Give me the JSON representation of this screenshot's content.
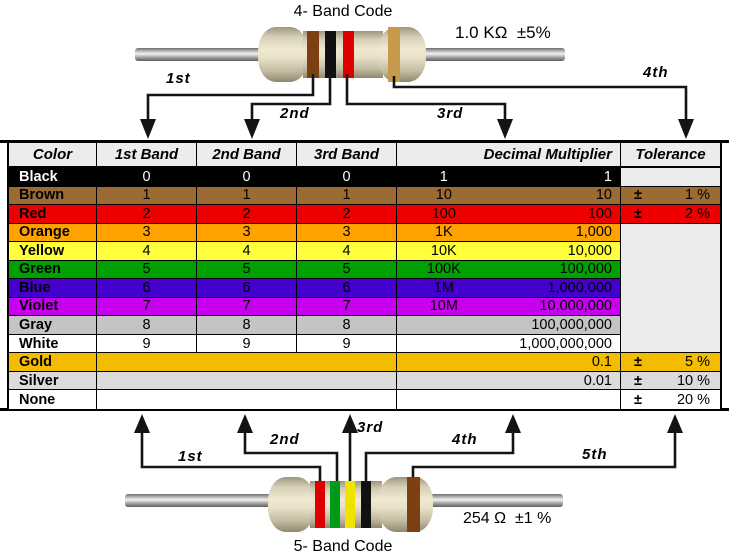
{
  "top_resistor": {
    "title": "4- Band Code",
    "value_label": "1.0 KΩ  ±5%",
    "band_names": [
      "brown-band",
      "black-band",
      "red-band",
      "gold-band"
    ],
    "band_colors": [
      "#7C4012",
      "#111111",
      "#DD0000",
      "#C79A4B"
    ],
    "arrow_labels": [
      "1st",
      "2nd",
      "3rd",
      "4th"
    ]
  },
  "bottom_resistor": {
    "title": "5- Band Code",
    "value_label": "254 Ω  ±1 %",
    "band_names": [
      "red-band",
      "green-band",
      "yellow-band",
      "black-band",
      "brown-band"
    ],
    "band_colors": [
      "#DD0000",
      "#009918",
      "#EFE400",
      "#111111",
      "#7C4012"
    ],
    "arrow_labels": [
      "1st",
      "2nd",
      "3rd",
      "4th",
      "5th"
    ]
  },
  "table": {
    "headers": [
      "Color",
      "1st Band",
      "2nd Band",
      "3rd Band",
      "Decimal Multiplier",
      "Tolerance"
    ],
    "tolerance_sign": "±",
    "header_bg": "#ECECEC",
    "empty_tolerance_bg": "#ECECEC",
    "rows": [
      {
        "name": "Black",
        "bg": "#000000",
        "fg": "#FFFFFF",
        "bands": [
          "0",
          "0",
          "0"
        ],
        "mult_short": "1",
        "mult_long": "1",
        "tol": "",
        "tol_bg": "#ECECEC",
        "tol_open": false
      },
      {
        "name": "Brown",
        "bg": "#9C6B33",
        "fg": "#000000",
        "bands": [
          "1",
          "1",
          "1"
        ],
        "mult_short": "10",
        "mult_long": "10",
        "tol": "1 %",
        "tol_bg": "#9C6B33",
        "tol_open": false
      },
      {
        "name": "Red",
        "bg": "#EE0000",
        "fg": "#000000",
        "bands": [
          "2",
          "2",
          "2"
        ],
        "mult_short": "100",
        "mult_long": "100",
        "tol": "2 %",
        "tol_bg": "#EE0000",
        "tol_open": false
      },
      {
        "name": "Orange",
        "bg": "#FFA200",
        "fg": "#000000",
        "bands": [
          "3",
          "3",
          "3"
        ],
        "mult_short": "1K",
        "mult_long": "1,000",
        "tol": "",
        "tol_bg": "#ECECEC",
        "tol_open": true
      },
      {
        "name": "Yellow",
        "bg": "#FFFF3B",
        "fg": "#000000",
        "bands": [
          "4",
          "4",
          "4"
        ],
        "mult_short": "10K",
        "mult_long": "10,000",
        "tol": "",
        "tol_bg": "#ECECEC",
        "tol_open": true
      },
      {
        "name": "Green",
        "bg": "#00A000",
        "fg": "#000000",
        "bands": [
          "5",
          "5",
          "5"
        ],
        "mult_short": "100K",
        "mult_long": "100,000",
        "tol": "",
        "tol_bg": "#ECECEC",
        "tol_open": true
      },
      {
        "name": "Blue",
        "bg": "#4400CC",
        "fg": "#000000",
        "bands": [
          "6",
          "6",
          "6"
        ],
        "mult_short": "1M",
        "mult_long": "1,000,000",
        "tol": "",
        "tol_bg": "#ECECEC",
        "tol_open": true
      },
      {
        "name": "Violet",
        "bg": "#C900F0",
        "fg": "#000000",
        "bands": [
          "7",
          "7",
          "7"
        ],
        "mult_short": "10M",
        "mult_long": "10,000,000",
        "tol": "",
        "tol_bg": "#ECECEC",
        "tol_open": true
      },
      {
        "name": "Gray",
        "bg": "#C4C4C4",
        "fg": "#000000",
        "bands": [
          "8",
          "8",
          "8"
        ],
        "mult_short": "",
        "mult_long": "100,000,000",
        "tol": "",
        "tol_bg": "#ECECEC",
        "tol_open": true
      },
      {
        "name": "White",
        "bg": "#FFFFFF",
        "fg": "#000000",
        "bands": [
          "9",
          "9",
          "9"
        ],
        "mult_short": "",
        "mult_long": "1,000,000,000",
        "tol": "",
        "tol_bg": "#ECECEC",
        "tol_open": false
      },
      {
        "name": "Gold",
        "bg": "#F4BC00",
        "fg": "#000000",
        "bands": null,
        "mult_short": "",
        "mult_long": "0.1",
        "tol": "5 %",
        "tol_bg": "#F4BC00",
        "tol_open": false
      },
      {
        "name": "Silver",
        "bg": "#DBDBDB",
        "fg": "#000000",
        "bands": null,
        "mult_short": "",
        "mult_long": "0.01",
        "tol": "10 %",
        "tol_bg": "#DBDBDB",
        "tol_open": false
      },
      {
        "name": "None",
        "bg": "#FFFFFF",
        "fg": "#000000",
        "bands": null,
        "mult_short": "",
        "mult_long": "",
        "tol": "20 %",
        "tol_bg": "#FFFFFF",
        "tol_open": false
      }
    ]
  }
}
